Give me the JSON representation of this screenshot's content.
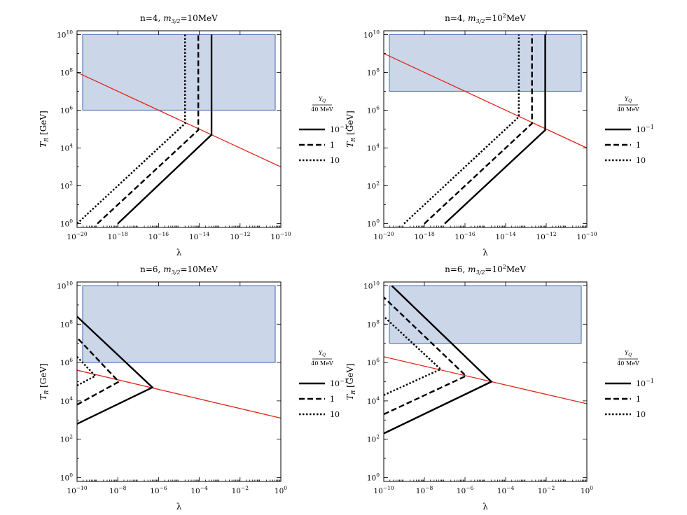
{
  "legend": {
    "header_top": "Y",
    "header_sub": "Q",
    "header_bottom": "40 MeV",
    "entries": [
      {
        "base": "10",
        "exp": "−1",
        "dash": "solid"
      },
      {
        "base": "1",
        "exp": "",
        "dash": "dashed"
      },
      {
        "base": "10",
        "exp": "",
        "dash": "dotted"
      }
    ]
  },
  "chart_data": [
    {
      "type": "line",
      "title": "n=4, m3/2=10MeV",
      "title_parts": {
        "prefix": "n=4, ",
        "m": "m",
        "sub": "3/2",
        "eq": "=10",
        "sup": "",
        "unit": "MeV"
      },
      "xlabel": "λ",
      "ylabel": "T_R [GeV]",
      "ylabel_parts": {
        "T": "T",
        "sub": "R",
        "unit": "[GeV]"
      },
      "xscale": "log10",
      "yscale": "log10",
      "xlim_exp": [
        -20,
        -10
      ],
      "ylim_exp": [
        -0.2,
        10.2
      ],
      "xticks": [
        -20,
        -18,
        -16,
        -14,
        -12,
        -10
      ],
      "yticks": [
        0,
        2,
        4,
        6,
        8,
        10
      ],
      "excluded_region": {
        "x_exp": [
          -20,
          -10
        ],
        "y_exp": [
          6,
          10
        ]
      },
      "red_line": [
        [
          -20,
          8
        ],
        [
          -10,
          3
        ]
      ],
      "series": [
        {
          "name": "10^-1",
          "dash": "solid",
          "points": [
            [
              -18,
              0
            ],
            [
              -13.4,
              4.7
            ],
            [
              -13.4,
              10
            ]
          ]
        },
        {
          "name": "1",
          "dash": "dashed",
          "points": [
            [
              -19,
              0
            ],
            [
              -14.05,
              4.95
            ],
            [
              -14.05,
              10
            ]
          ]
        },
        {
          "name": "10",
          "dash": "dotted",
          "points": [
            [
              -20,
              0
            ],
            [
              -14.7,
              5.3
            ],
            [
              -14.7,
              10
            ]
          ]
        }
      ]
    },
    {
      "type": "line",
      "title": "n=4, m3/2=10^2MeV",
      "title_parts": {
        "prefix": "n=4, ",
        "m": "m",
        "sub": "3/2",
        "eq": "=10",
        "sup": "2",
        "unit": "MeV"
      },
      "xlabel": "λ",
      "ylabel": "T_R [GeV]",
      "ylabel_parts": {
        "T": "T",
        "sub": "R",
        "unit": "[GeV]"
      },
      "xscale": "log10",
      "yscale": "log10",
      "xlim_exp": [
        -20,
        -10
      ],
      "ylim_exp": [
        -0.2,
        10.2
      ],
      "xticks": [
        -20,
        -18,
        -16,
        -14,
        -12,
        -10
      ],
      "yticks": [
        0,
        2,
        4,
        6,
        8,
        10
      ],
      "excluded_region": {
        "x_exp": [
          -20,
          -10
        ],
        "y_exp": [
          7,
          10
        ]
      },
      "red_line": [
        [
          -20,
          9
        ],
        [
          -10,
          4
        ]
      ],
      "series": [
        {
          "name": "10^-1",
          "dash": "solid",
          "points": [
            [
              -17,
              0
            ],
            [
              -12.05,
              4.95
            ],
            [
              -12.05,
              10
            ]
          ]
        },
        {
          "name": "1",
          "dash": "dashed",
          "points": [
            [
              -18,
              0
            ],
            [
              -12.7,
              5.3
            ],
            [
              -12.7,
              10
            ]
          ]
        },
        {
          "name": "10",
          "dash": "dotted",
          "points": [
            [
              -19,
              0
            ],
            [
              -13.35,
              5.65
            ],
            [
              -13.35,
              10
            ]
          ]
        }
      ]
    },
    {
      "type": "line",
      "title": "n=6, m3/2=10MeV",
      "title_parts": {
        "prefix": "n=6, ",
        "m": "m",
        "sub": "3/2",
        "eq": "=10",
        "sup": "",
        "unit": "MeV"
      },
      "xlabel": "λ",
      "ylabel": "T_R [GeV]",
      "ylabel_parts": {
        "T": "T",
        "sub": "R",
        "unit": "[GeV]"
      },
      "xscale": "log10",
      "yscale": "log10",
      "xlim_exp": [
        -10,
        0
      ],
      "ylim_exp": [
        -0.2,
        10.2
      ],
      "xticks": [
        -10,
        -8,
        -6,
        -4,
        -2,
        0
      ],
      "yticks": [
        0,
        2,
        4,
        6,
        8,
        10
      ],
      "excluded_region": {
        "x_exp": [
          -10,
          0
        ],
        "y_exp": [
          6,
          10
        ]
      },
      "red_line": [
        [
          -10,
          5.6
        ],
        [
          0,
          3.1
        ]
      ],
      "series": [
        {
          "name": "10^-1",
          "dash": "solid",
          "points": [
            [
              -10,
              2.8
            ],
            [
              -6.3,
              4.7
            ],
            [
              -10,
              8.4
            ]
          ]
        },
        {
          "name": "1",
          "dash": "dashed",
          "points": [
            [
              -10,
              3.8
            ],
            [
              -7.95,
              5.0
            ],
            [
              -10,
              7.3
            ]
          ]
        },
        {
          "name": "10",
          "dash": "dotted",
          "points": [
            [
              -10,
              4.8
            ],
            [
              -9.1,
              5.3
            ],
            [
              -10,
              6.3
            ]
          ]
        }
      ]
    },
    {
      "type": "line",
      "title": "n=6, m3/2=10^2MeV",
      "title_parts": {
        "prefix": "n=6, ",
        "m": "m",
        "sub": "3/2",
        "eq": "=10",
        "sup": "2",
        "unit": "MeV"
      },
      "xlabel": "λ",
      "ylabel": "T_R [GeV]",
      "ylabel_parts": {
        "T": "T",
        "sub": "R",
        "unit": "[GeV]"
      },
      "xscale": "log10",
      "yscale": "log10",
      "xlim_exp": [
        -10,
        0
      ],
      "ylim_exp": [
        -0.2,
        10.2
      ],
      "xticks": [
        -10,
        -8,
        -6,
        -4,
        -2,
        0
      ],
      "yticks": [
        0,
        2,
        4,
        6,
        8,
        10
      ],
      "excluded_region": {
        "x_exp": [
          -10,
          0
        ],
        "y_exp": [
          7,
          10
        ]
      },
      "red_line": [
        [
          -10,
          6.3
        ],
        [
          0,
          3.85
        ]
      ],
      "series": [
        {
          "name": "10^-1",
          "dash": "solid",
          "points": [
            [
              -10,
              2.3
            ],
            [
              -4.7,
              5.0
            ],
            [
              -9.6,
              10
            ]
          ]
        },
        {
          "name": "1",
          "dash": "dashed",
          "points": [
            [
              -10,
              3.3
            ],
            [
              -5.95,
              5.3
            ],
            [
              -10,
              9.4
            ]
          ]
        },
        {
          "name": "10",
          "dash": "dotted",
          "points": [
            [
              -10,
              4.3
            ],
            [
              -7.2,
              5.65
            ],
            [
              -10,
              8.4
            ]
          ]
        }
      ]
    }
  ]
}
